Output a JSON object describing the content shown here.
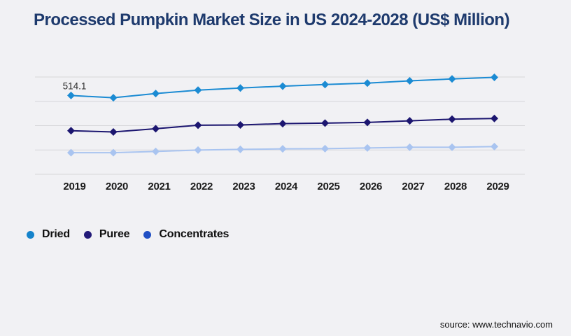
{
  "page": {
    "background_color": "#f1f1f4"
  },
  "header": {
    "title": "Processed Pumpkin Market Size in US 2024-2028 (US$ Million)",
    "title_color": "#1e3a6d"
  },
  "footer": {
    "source": "source: www.technavio.com"
  },
  "chart_data": {
    "type": "line",
    "title": "Processed Pumpkin Market Size in US 2024-2028 (US$ Million)",
    "categories": [
      "2019",
      "2020",
      "2021",
      "2022",
      "2023",
      "2024",
      "2025",
      "2026",
      "2027",
      "2028",
      "2029"
    ],
    "series": [
      {
        "name": "Dried",
        "color": "#1b8bd3",
        "legend_color": "#1583cb",
        "values": [
          514.1,
          504.6,
          521.9,
          536.0,
          544.6,
          552.4,
          559.0,
          564.8,
          574.3,
          582.0,
          588.6
        ],
        "point_label": {
          "index": 0,
          "text": "514.1"
        }
      },
      {
        "name": "Puree",
        "color": "#1c1670",
        "legend_color": "#221a78",
        "values": [
          369.1,
          364.2,
          377.4,
          391.8,
          392.7,
          398.4,
          400.4,
          403.3,
          409.9,
          416.5,
          419.4
        ]
      },
      {
        "name": "Concentrates",
        "color": "#a9c4f0",
        "legend_color": "#2150c4",
        "values": [
          279.0,
          279.0,
          283.9,
          289.6,
          292.5,
          294.5,
          295.4,
          298.2,
          301.1,
          301.1,
          304.0
        ]
      }
    ],
    "xlabel": "",
    "ylabel": "",
    "ylim": [
      190,
      615
    ],
    "gridline_values": [
      190,
      290,
      390,
      490,
      590
    ],
    "gridline_color": "#d6d6d9",
    "grid": "horizontal-only",
    "y_axis_labels_shown": false,
    "legend_position": "bottom-left",
    "marker": "diamond",
    "x_label_color": "#1c1c1c",
    "point_label_color": "#2b2b2b"
  }
}
